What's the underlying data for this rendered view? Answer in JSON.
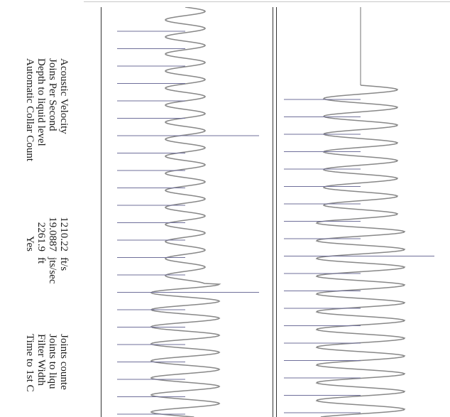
{
  "parameters": {
    "labels": [
      "Acoustic Velocity",
      "Joins Per Second",
      "Depth to liquid level",
      "Automatic Collar Count"
    ],
    "values": [
      "1210.22",
      "19.0887",
      "2261.9",
      "Yes"
    ],
    "units": [
      "ft/s",
      "jts/sec",
      "ft",
      ""
    ]
  },
  "secondary_parameters": {
    "labels": [
      "Joints counte",
      "Joints to liqu",
      "Filter Width",
      "Time to 1st C"
    ]
  },
  "colors": {
    "trace": "#888888",
    "collar_marker": "#6f6f9a",
    "frame": "#333333"
  }
}
